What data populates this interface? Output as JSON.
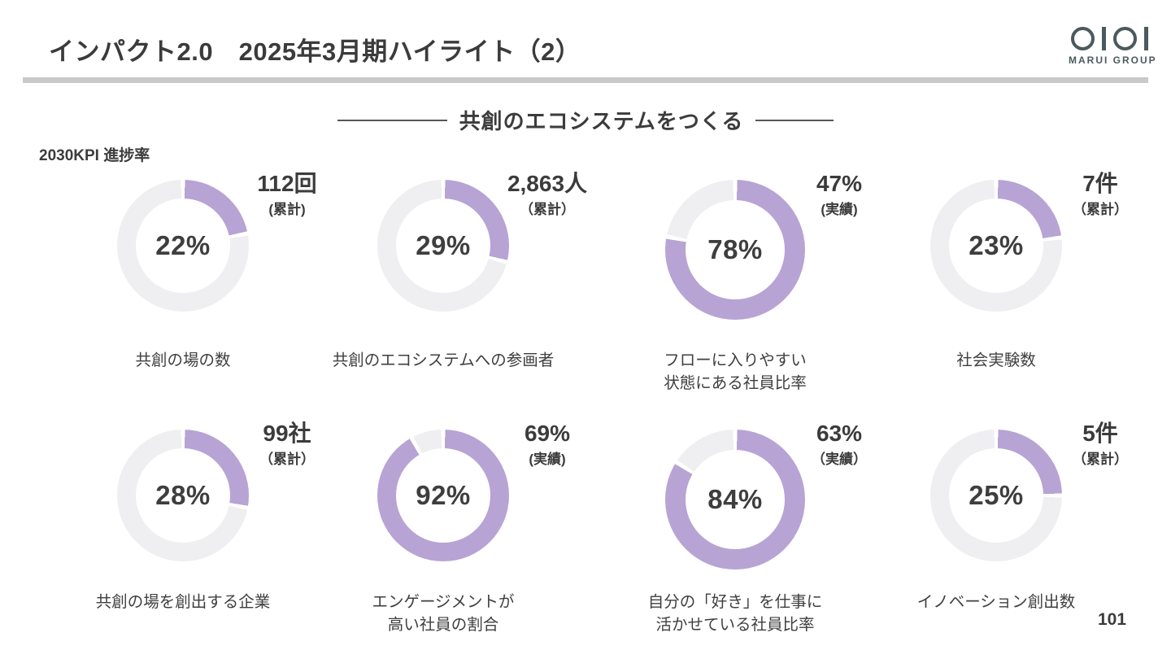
{
  "slide": {
    "title": "インパクト2.0　2025年3月期ハイライト（2）",
    "section_heading": "共創のエコシステムをつくる",
    "kpi_label": "2030KPI 進捗率",
    "page_number": "101"
  },
  "logo": {
    "brand_mark": "OIOI",
    "brand_name": "MARUI GROUP"
  },
  "colors": {
    "progress": "#b7a3d4",
    "track": "#efeef0",
    "divider": "#c9c9c9",
    "text": "#3d3d3d",
    "logo": "#4b5a5d"
  },
  "chart_data": {
    "type": "pie",
    "variant": "donut-progress-grid",
    "title": "共創のエコシステムをつくる",
    "subtitle": "2030KPI 進捗率",
    "value_range": [
      0,
      100
    ],
    "legend_position": "none",
    "items": [
      {
        "label": "共創の場の数",
        "label_lines": [
          "共創の場の数"
        ],
        "progress_percent": 22,
        "progress_label": "22%",
        "value": "112回",
        "note": "累計",
        "note_display": "(累計)"
      },
      {
        "label": "共創のエコシステムへの参画者",
        "label_lines": [
          "共創のエコシステムへの参画者"
        ],
        "progress_percent": 29,
        "progress_label": "29%",
        "value": "2,863人",
        "note": "累計",
        "note_display": "（累計）"
      },
      {
        "label": "フローに入りやすい状態にある社員比率",
        "label_lines": [
          "フローに入りやすい",
          "状態にある社員比率"
        ],
        "progress_percent": 78,
        "progress_label": "78%",
        "value": "47%",
        "note": "実績",
        "note_display": "(実績)"
      },
      {
        "label": "社会実験数",
        "label_lines": [
          "社会実験数"
        ],
        "progress_percent": 23,
        "progress_label": "23%",
        "value": "7件",
        "note": "累計",
        "note_display": "（累計）"
      },
      {
        "label": "共創の場を創出する企業",
        "label_lines": [
          "共創の場を創出する企業"
        ],
        "progress_percent": 28,
        "progress_label": "28%",
        "value": "99社",
        "note": "累計",
        "note_display": "（累計）"
      },
      {
        "label": "エンゲージメントが高い社員の割合",
        "label_lines": [
          "エンゲージメントが",
          "高い社員の割合"
        ],
        "progress_percent": 92,
        "progress_label": "92%",
        "value": "69%",
        "note": "実績",
        "note_display": "(実績)"
      },
      {
        "label": "自分の「好き」を仕事に活かせている社員比率",
        "label_lines": [
          "自分の「好き」を仕事に",
          "活かせている社員比率"
        ],
        "progress_percent": 84,
        "progress_label": "84%",
        "value": "63%",
        "note": "実績",
        "note_display": "（実績）"
      },
      {
        "label": "イノベーション創出数",
        "label_lines": [
          "イノベーション創出数"
        ],
        "progress_percent": 25,
        "progress_label": "25%",
        "value": "5件",
        "note": "累計",
        "note_display": "（累計）"
      }
    ]
  }
}
